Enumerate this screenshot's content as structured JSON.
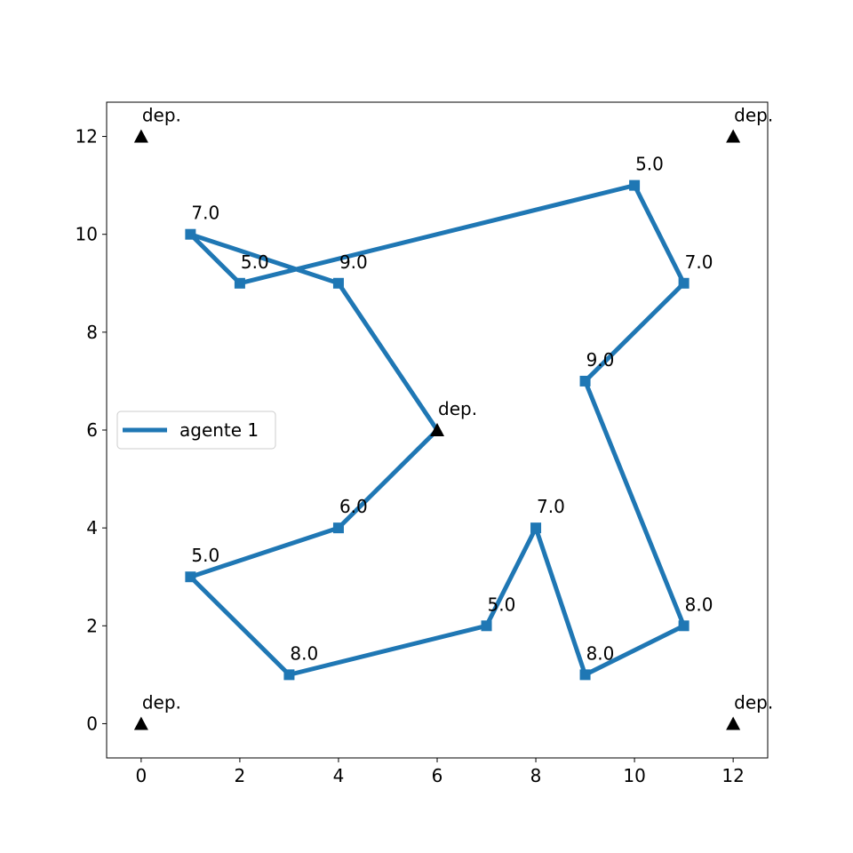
{
  "chart_data": {
    "type": "scatter",
    "xlim": [
      -0.7,
      12.7
    ],
    "ylim": [
      -0.7,
      12.7
    ],
    "x_ticks": [
      0,
      2,
      4,
      6,
      8,
      10,
      12
    ],
    "y_ticks": [
      0,
      2,
      4,
      6,
      8,
      10,
      12
    ],
    "grid": false,
    "legend": {
      "location": "center-left",
      "entries": [
        "agente 1"
      ]
    },
    "series": [
      {
        "name": "agente 1",
        "color": "#1f77b4",
        "marker": "square",
        "points": [
          {
            "x": 6,
            "y": 6
          },
          {
            "x": 4,
            "y": 9,
            "label": "9.0"
          },
          {
            "x": 1,
            "y": 10,
            "label": "7.0"
          },
          {
            "x": 2,
            "y": 9,
            "label": "5.0"
          },
          {
            "x": 10,
            "y": 11,
            "label": "5.0"
          },
          {
            "x": 11,
            "y": 9,
            "label": "7.0"
          },
          {
            "x": 9,
            "y": 7,
            "label": "9.0"
          },
          {
            "x": 11,
            "y": 2,
            "label": "8.0"
          },
          {
            "x": 9,
            "y": 1,
            "label": "8.0"
          },
          {
            "x": 8,
            "y": 4,
            "label": "7.0"
          },
          {
            "x": 7,
            "y": 2,
            "label": "5.0"
          },
          {
            "x": 3,
            "y": 1,
            "label": "8.0"
          },
          {
            "x": 1,
            "y": 3,
            "label": "5.0"
          },
          {
            "x": 4,
            "y": 4,
            "label": "6.0"
          },
          {
            "x": 6,
            "y": 6
          }
        ]
      }
    ],
    "depots": {
      "marker": "triangle",
      "color": "#000000",
      "points": [
        {
          "x": 0,
          "y": 12,
          "label": "dep."
        },
        {
          "x": 12,
          "y": 12,
          "label": "dep."
        },
        {
          "x": 6,
          "y": 6,
          "label": "dep."
        },
        {
          "x": 0,
          "y": 0,
          "label": "dep."
        },
        {
          "x": 12,
          "y": 0,
          "label": "dep."
        }
      ]
    }
  }
}
